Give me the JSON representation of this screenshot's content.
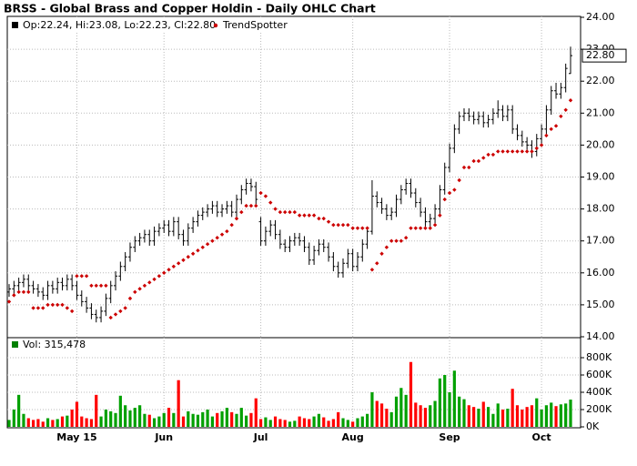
{
  "chart_data": {
    "type": "ohlc",
    "title": "BRSS - Global Brass and Copper Holdin - Daily OHLC Chart",
    "legend": "Op:22.24, Hi:23.08, Lo:22.23, Cl:22.80",
    "color": "#000000",
    "last_price_label": "22.80",
    "grid": true,
    "categories": [
      null,
      null,
      null,
      null,
      null,
      null,
      null,
      null,
      null,
      null,
      null,
      null,
      null,
      null,
      "May 15",
      null,
      null,
      null,
      null,
      null,
      null,
      null,
      null,
      null,
      null,
      null,
      null,
      null,
      null,
      null,
      null,
      null,
      "Jun",
      null,
      null,
      null,
      null,
      null,
      null,
      null,
      null,
      null,
      null,
      null,
      null,
      null,
      null,
      null,
      null,
      null,
      null,
      null,
      "Jul",
      null,
      null,
      null,
      null,
      null,
      null,
      null,
      null,
      null,
      null,
      null,
      null,
      null,
      null,
      null,
      null,
      null,
      null,
      "Aug",
      null,
      null,
      null,
      null,
      null,
      null,
      null,
      null,
      null,
      null,
      null,
      null,
      null,
      null,
      null,
      null,
      null,
      null,
      null,
      "Sep",
      null,
      null,
      null,
      null,
      null,
      null,
      null,
      null,
      null,
      null,
      null,
      null,
      null,
      null,
      null,
      null,
      null,
      null,
      "Oct",
      null,
      null,
      null,
      null,
      null,
      null
    ],
    "open": [
      15.4,
      15.5,
      15.6,
      15.7,
      15.8,
      15.6,
      15.5,
      15.4,
      15.3,
      15.6,
      15.5,
      15.7,
      15.6,
      15.8,
      15.6,
      15.3,
      15.1,
      14.9,
      14.7,
      14.6,
      14.8,
      15.2,
      15.6,
      15.9,
      16.2,
      16.5,
      16.8,
      17.0,
      17.1,
      17.2,
      17.0,
      17.3,
      17.4,
      17.5,
      17.3,
      17.6,
      17.2,
      17.0,
      17.4,
      17.6,
      17.8,
      17.9,
      18.0,
      18.1,
      17.9,
      18.0,
      18.1,
      17.9,
      18.3,
      18.6,
      18.8,
      18.7,
      17.6,
      17.0,
      17.3,
      17.5,
      17.2,
      16.9,
      16.8,
      17.0,
      17.1,
      17.0,
      16.8,
      16.4,
      16.7,
      16.9,
      16.8,
      16.5,
      16.2,
      16.0,
      16.3,
      16.6,
      16.2,
      16.5,
      16.9,
      17.3,
      18.4,
      18.2,
      18.0,
      17.8,
      17.9,
      18.3,
      18.6,
      18.8,
      18.5,
      18.2,
      17.9,
      17.6,
      17.7,
      18.0,
      18.6,
      19.3,
      19.9,
      20.5,
      20.9,
      21.0,
      20.9,
      20.8,
      20.9,
      20.7,
      20.8,
      21.0,
      21.1,
      20.9,
      21.1,
      20.5,
      20.3,
      20.1,
      20.0,
      19.8,
      20.2,
      20.5,
      21.1,
      21.7,
      21.6,
      21.8,
      22.24
    ],
    "high": [
      15.65,
      15.75,
      15.85,
      15.95,
      15.95,
      15.75,
      15.65,
      15.55,
      15.75,
      15.75,
      15.85,
      15.85,
      15.95,
      15.95,
      15.75,
      15.45,
      15.25,
      15.05,
      14.85,
      14.95,
      15.35,
      15.75,
      16.05,
      16.35,
      16.65,
      16.95,
      17.15,
      17.25,
      17.35,
      17.35,
      17.45,
      17.55,
      17.65,
      17.65,
      17.75,
      17.75,
      17.35,
      17.55,
      17.75,
      17.95,
      18.05,
      18.15,
      18.25,
      18.25,
      18.15,
      18.25,
      18.25,
      18.45,
      18.75,
      18.95,
      18.95,
      18.85,
      17.75,
      17.45,
      17.65,
      17.65,
      17.35,
      17.05,
      17.15,
      17.25,
      17.25,
      17.15,
      16.95,
      16.85,
      17.05,
      17.05,
      16.95,
      16.65,
      16.35,
      16.45,
      16.75,
      16.75,
      16.65,
      17.05,
      17.45,
      18.9,
      18.55,
      18.35,
      18.15,
      18.05,
      18.45,
      18.75,
      18.95,
      18.95,
      18.65,
      18.35,
      18.05,
      17.85,
      18.15,
      18.75,
      19.45,
      20.05,
      20.65,
      21.05,
      21.15,
      21.15,
      21.05,
      21.05,
      21.05,
      20.95,
      21.15,
      21.4,
      21.25,
      21.25,
      21.25,
      20.65,
      20.45,
      20.25,
      20.15,
      20.35,
      20.65,
      21.25,
      21.85,
      21.95,
      21.95,
      22.55,
      23.08
    ],
    "low": [
      15.25,
      15.35,
      15.45,
      15.55,
      15.45,
      15.35,
      15.25,
      15.15,
      15.15,
      15.35,
      15.35,
      15.45,
      15.45,
      15.45,
      15.15,
      14.95,
      14.75,
      14.55,
      14.45,
      14.45,
      14.65,
      15.05,
      15.45,
      15.75,
      16.05,
      16.35,
      16.65,
      16.85,
      16.95,
      16.85,
      16.85,
      17.15,
      17.25,
      17.15,
      17.15,
      17.05,
      16.85,
      16.85,
      17.25,
      17.45,
      17.65,
      17.75,
      17.85,
      17.75,
      17.75,
      17.85,
      17.75,
      17.75,
      18.15,
      18.45,
      18.55,
      18.15,
      16.85,
      16.85,
      17.15,
      17.05,
      16.75,
      16.65,
      16.65,
      16.85,
      16.85,
      16.65,
      16.25,
      16.25,
      16.55,
      16.65,
      16.35,
      16.05,
      15.85,
      15.85,
      16.15,
      16.05,
      16.05,
      16.35,
      16.75,
      17.2,
      18.05,
      17.85,
      17.65,
      17.65,
      17.75,
      18.15,
      18.45,
      18.35,
      18.05,
      17.75,
      17.45,
      17.45,
      17.55,
      17.85,
      18.45,
      19.15,
      19.75,
      20.35,
      20.75,
      20.75,
      20.65,
      20.65,
      20.55,
      20.55,
      20.65,
      20.85,
      20.75,
      20.75,
      20.35,
      20.15,
      19.95,
      19.85,
      19.6,
      19.65,
      20.05,
      20.35,
      20.95,
      21.45,
      21.45,
      21.65,
      22.23
    ],
    "close": [
      15.5,
      15.6,
      15.7,
      15.8,
      15.6,
      15.5,
      15.4,
      15.3,
      15.6,
      15.5,
      15.7,
      15.6,
      15.8,
      15.6,
      15.3,
      15.1,
      14.9,
      14.7,
      14.6,
      14.8,
      15.2,
      15.6,
      15.9,
      16.2,
      16.5,
      16.8,
      17.0,
      17.1,
      17.2,
      17.0,
      17.3,
      17.4,
      17.5,
      17.3,
      17.6,
      17.2,
      17.0,
      17.4,
      17.6,
      17.8,
      17.9,
      18.0,
      18.1,
      17.9,
      18.0,
      18.1,
      17.9,
      18.3,
      18.6,
      18.8,
      18.7,
      18.3,
      17.0,
      17.3,
      17.5,
      17.2,
      16.9,
      16.8,
      17.0,
      17.1,
      17.0,
      16.8,
      16.4,
      16.7,
      16.9,
      16.8,
      16.5,
      16.2,
      16.0,
      16.3,
      16.6,
      16.2,
      16.5,
      16.9,
      17.3,
      18.4,
      18.2,
      18.0,
      17.8,
      17.9,
      18.3,
      18.6,
      18.8,
      18.5,
      18.2,
      17.9,
      17.6,
      17.7,
      18.0,
      18.6,
      19.3,
      19.9,
      20.5,
      20.9,
      21.0,
      20.9,
      20.8,
      20.9,
      20.7,
      20.8,
      21.0,
      21.1,
      20.9,
      21.1,
      20.5,
      20.3,
      20.1,
      20.0,
      19.8,
      20.2,
      20.5,
      21.1,
      21.7,
      21.6,
      21.8,
      22.4,
      22.8
    ],
    "trend": {
      "name": "TrendSpotter",
      "color": "#cc0000",
      "values": [
        15.1,
        15.3,
        15.4,
        15.4,
        15.4,
        14.9,
        14.9,
        14.9,
        15.0,
        15.0,
        15.0,
        15.0,
        14.9,
        14.8,
        15.9,
        15.9,
        15.9,
        15.6,
        15.6,
        15.6,
        15.6,
        14.6,
        14.7,
        14.8,
        14.9,
        15.2,
        15.4,
        15.5,
        15.6,
        15.7,
        15.8,
        15.9,
        16.0,
        16.1,
        16.2,
        16.3,
        16.4,
        16.5,
        16.6,
        16.7,
        16.8,
        16.9,
        17.0,
        17.1,
        17.2,
        17.3,
        17.5,
        17.7,
        17.9,
        18.1,
        18.1,
        18.1,
        18.5,
        18.4,
        18.2,
        18.0,
        17.9,
        17.9,
        17.9,
        17.9,
        17.8,
        17.8,
        17.8,
        17.8,
        17.7,
        17.7,
        17.6,
        17.5,
        17.5,
        17.5,
        17.5,
        17.4,
        17.4,
        17.4,
        17.4,
        16.1,
        16.3,
        16.6,
        16.8,
        17.0,
        17.0,
        17.0,
        17.1,
        17.4,
        17.4,
        17.4,
        17.4,
        17.4,
        17.5,
        17.8,
        18.3,
        18.5,
        18.6,
        18.9,
        19.3,
        19.3,
        19.5,
        19.5,
        19.6,
        19.7,
        19.7,
        19.8,
        19.8,
        19.8,
        19.8,
        19.8,
        19.8,
        19.8,
        19.8,
        19.9,
        20.0,
        20.3,
        20.5,
        20.6,
        20.9,
        21.1,
        21.4
      ]
    },
    "ylim": [
      14,
      24
    ],
    "yticks": [
      {
        "value": 14,
        "label": "14.00"
      },
      {
        "value": 15,
        "label": "15.00"
      },
      {
        "value": 16,
        "label": "16.00"
      },
      {
        "value": 17,
        "label": "17.00"
      },
      {
        "value": 18,
        "label": "18.00"
      },
      {
        "value": 19,
        "label": "19.00"
      },
      {
        "value": 20,
        "label": "20.00"
      },
      {
        "value": 21,
        "label": "21.00"
      },
      {
        "value": 22,
        "label": "22.00"
      },
      {
        "value": 23,
        "label": "23.00"
      },
      {
        "value": 24,
        "label": "24.00"
      }
    ],
    "volume": {
      "legend": "Vol: 315,478",
      "color": "#008000",
      "up_color": "#00a000",
      "down_color": "#ff0000",
      "values": [
        80000,
        200000,
        370000,
        150000,
        100000,
        80000,
        90000,
        60000,
        100000,
        80000,
        90000,
        120000,
        130000,
        200000,
        290000,
        120000,
        100000,
        90000,
        370000,
        120000,
        200000,
        180000,
        160000,
        360000,
        250000,
        190000,
        220000,
        250000,
        150000,
        140000,
        100000,
        120000,
        160000,
        220000,
        160000,
        540000,
        120000,
        180000,
        150000,
        140000,
        170000,
        200000,
        120000,
        160000,
        180000,
        220000,
        170000,
        150000,
        220000,
        130000,
        160000,
        330000,
        90000,
        110000,
        80000,
        120000,
        90000,
        80000,
        60000,
        70000,
        120000,
        100000,
        90000,
        120000,
        150000,
        110000,
        70000,
        90000,
        170000,
        100000,
        80000,
        60000,
        100000,
        120000,
        150000,
        400000,
        300000,
        270000,
        210000,
        170000,
        350000,
        450000,
        370000,
        750000,
        280000,
        250000,
        220000,
        250000,
        300000,
        560000,
        600000,
        400000,
        650000,
        350000,
        320000,
        250000,
        230000,
        210000,
        290000,
        230000,
        150000,
        270000,
        200000,
        210000,
        440000,
        250000,
        200000,
        230000,
        250000,
        330000,
        200000,
        250000,
        280000,
        240000,
        260000,
        270000,
        315478
      ],
      "ylim": [
        0,
        1000000
      ],
      "yticks": [
        {
          "value": 0,
          "label": "0K"
        },
        {
          "value": 200000,
          "label": "200K"
        },
        {
          "value": 400000,
          "label": "400K"
        },
        {
          "value": 600000,
          "label": "600K"
        },
        {
          "value": 800000,
          "label": "800K"
        }
      ]
    }
  }
}
